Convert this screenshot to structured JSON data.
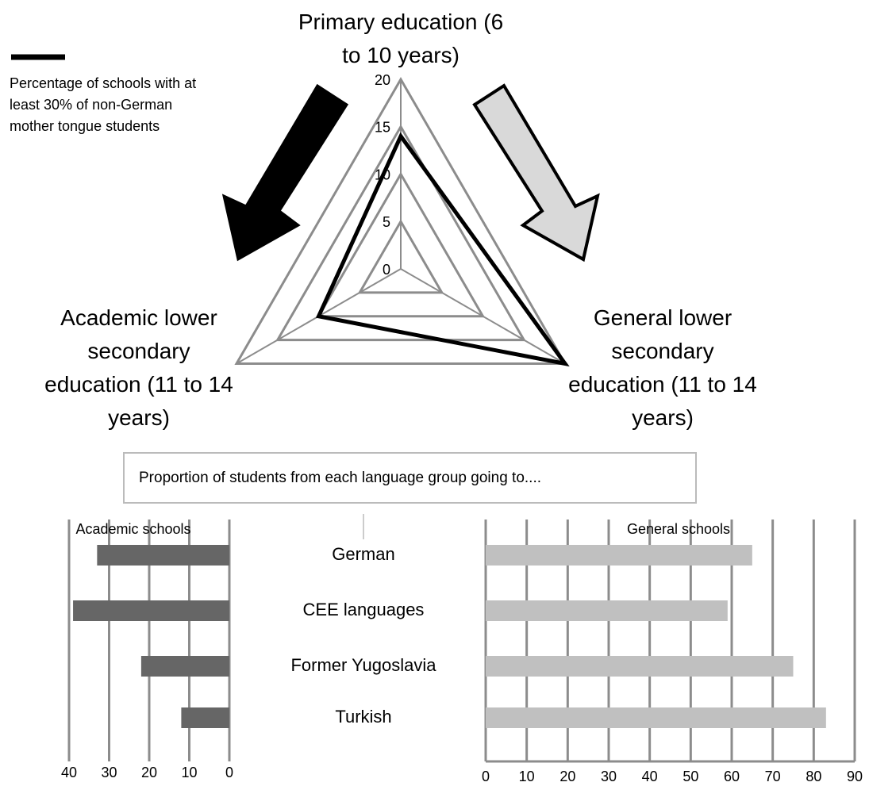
{
  "chart_data": [
    {
      "type": "radar",
      "categories": [
        "Primary education (6 to 10 years)",
        "General lower secondary education (11 to 14 years)",
        "Academic lower secondary education (11 to 14 years)"
      ],
      "series": [
        {
          "name": "Percentage of schools with at least 30% of non-German mother tongue students",
          "color": "#000000",
          "values": [
            14,
            20,
            10
          ]
        }
      ],
      "rlim": [
        0,
        20
      ],
      "rticks": [
        0,
        5,
        10,
        15,
        20
      ],
      "legend": "top-left"
    },
    {
      "type": "bar",
      "categories": [
        "German",
        "CEE languages",
        "Former Yugoslavia",
        "Turkish"
      ],
      "series": [
        {
          "name": "Academic schools",
          "color": "#666666",
          "values": [
            33,
            39,
            22,
            12
          ],
          "xlim": [
            0,
            40
          ],
          "xticks": [
            0,
            10,
            20,
            30,
            40
          ],
          "reversed": true
        },
        {
          "name": "General schools",
          "color": "#c0c0c0",
          "values": [
            65,
            59,
            75,
            83
          ],
          "xlim": [
            0,
            90
          ],
          "xticks": [
            0,
            10,
            20,
            30,
            40,
            50,
            60,
            70,
            80,
            90
          ],
          "reversed": false
        }
      ],
      "grid": true
    }
  ],
  "caption": "Proportion of students from each language group going to...."
}
